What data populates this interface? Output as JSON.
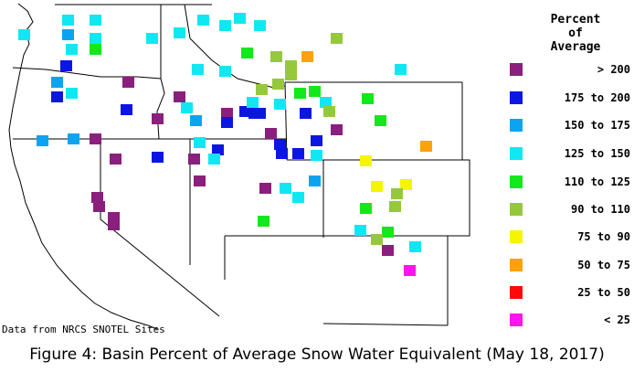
{
  "legend": {
    "title": [
      "Percent",
      "of",
      "Average"
    ],
    "classes": [
      {
        "label": "> 200",
        "color": "#8a1f7e"
      },
      {
        "label": "175 to 200",
        "color": "#0b17e0"
      },
      {
        "label": "150 to 175",
        "color": "#0aa4f0"
      },
      {
        "label": "125 to 150",
        "color": "#0fe8f2"
      },
      {
        "label": "110 to 125",
        "color": "#12e81a"
      },
      {
        "label": "90 to 110",
        "color": "#96c83c"
      },
      {
        "label": "75 to 90",
        "color": "#f5f500"
      },
      {
        "label": "50 to 75",
        "color": "#ffa10a"
      },
      {
        "label": "25 to 50",
        "color": "#ff0a0a"
      },
      {
        "label": "< 25",
        "color": "#ff14ee"
      }
    ]
  },
  "source_note": "Data from NRCS SNOTEL Sites",
  "caption": "Figure 4: Basin Percent of Average Snow Water Equivalent (May 18, 2017)"
}
